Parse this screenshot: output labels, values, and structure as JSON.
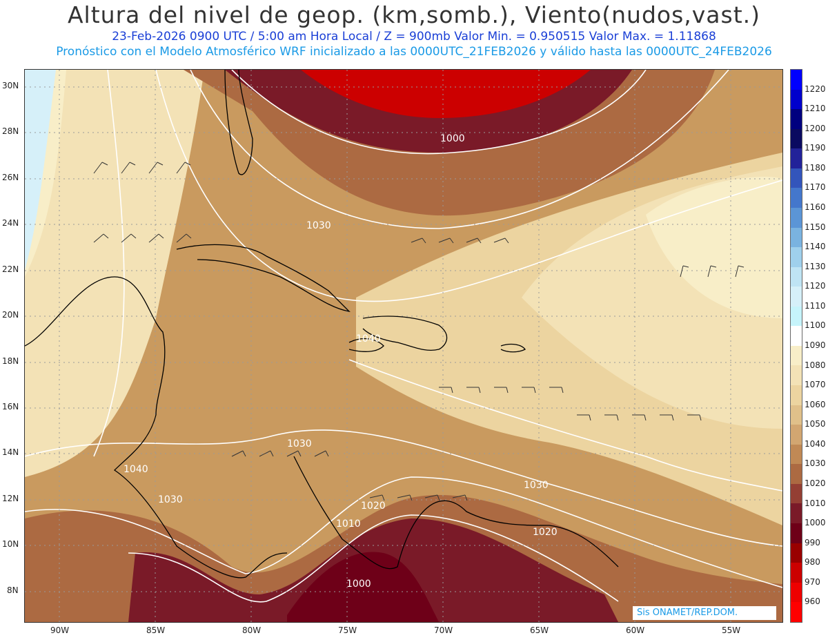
{
  "title": "Altura del nivel de geop. (km,somb.), Viento(nudos,vast.)",
  "subtitle_line1": "23-Feb-2026  0900 UTC / 5:00 am Hora Local / Z = 900mb     Valor Min. = 0.950515   Valor Max. = 1.11868",
  "subtitle_line2": "Pronóstico con el Modelo Atmosférico WRF inicializado a las 0000UTC_21FEB2026 y válido hasta las  0000UTC_24FEB2026",
  "lat_labels": [
    "30N",
    "28N",
    "26N",
    "24N",
    "22N",
    "20N",
    "18N",
    "16N",
    "14N",
    "12N",
    "10N",
    "8N"
  ],
  "lon_labels": [
    "90W",
    "85W",
    "80W",
    "75W",
    "70W",
    "65W",
    "60W",
    "55W"
  ],
  "contour_labels": [
    "1000",
    "1030",
    "1040",
    "1030",
    "1040",
    "1030",
    "1020",
    "1010",
    "1030",
    "1020",
    "1000"
  ],
  "colorbar": {
    "levels": [
      "1220",
      "1210",
      "1200",
      "1190",
      "1180",
      "1170",
      "1160",
      "1150",
      "1140",
      "1130",
      "1120",
      "1110",
      "1100",
      "1090",
      "1080",
      "1070",
      "1060",
      "1050",
      "1040",
      "1030",
      "1020",
      "1010",
      "1000",
      "990",
      "980",
      "970",
      "960"
    ],
    "colors": [
      "#0000ff",
      "#0000cc",
      "#00007f",
      "#0a0a60",
      "#222299",
      "#3355bb",
      "#4477cc",
      "#5b95d6",
      "#7ab3e0",
      "#9fd0ec",
      "#bfe4f4",
      "#d6f0f9",
      "#c6f4fb",
      "#ffffff",
      "#f8eec8",
      "#f3e2b6",
      "#ecd4a0",
      "#e0c08a",
      "#d2a671",
      "#c08955",
      "#ac6a42",
      "#943f34",
      "#7a1a28",
      "#6e0018",
      "#990000",
      "#cc0000",
      "#ee0000",
      "#ff0000"
    ]
  },
  "credit": "Sis ONAMET/REP.DOM.",
  "colors": {
    "title": "#333333",
    "subtitle1": "#1a3fd6",
    "subtitle2": "#1a9ae6"
  }
}
